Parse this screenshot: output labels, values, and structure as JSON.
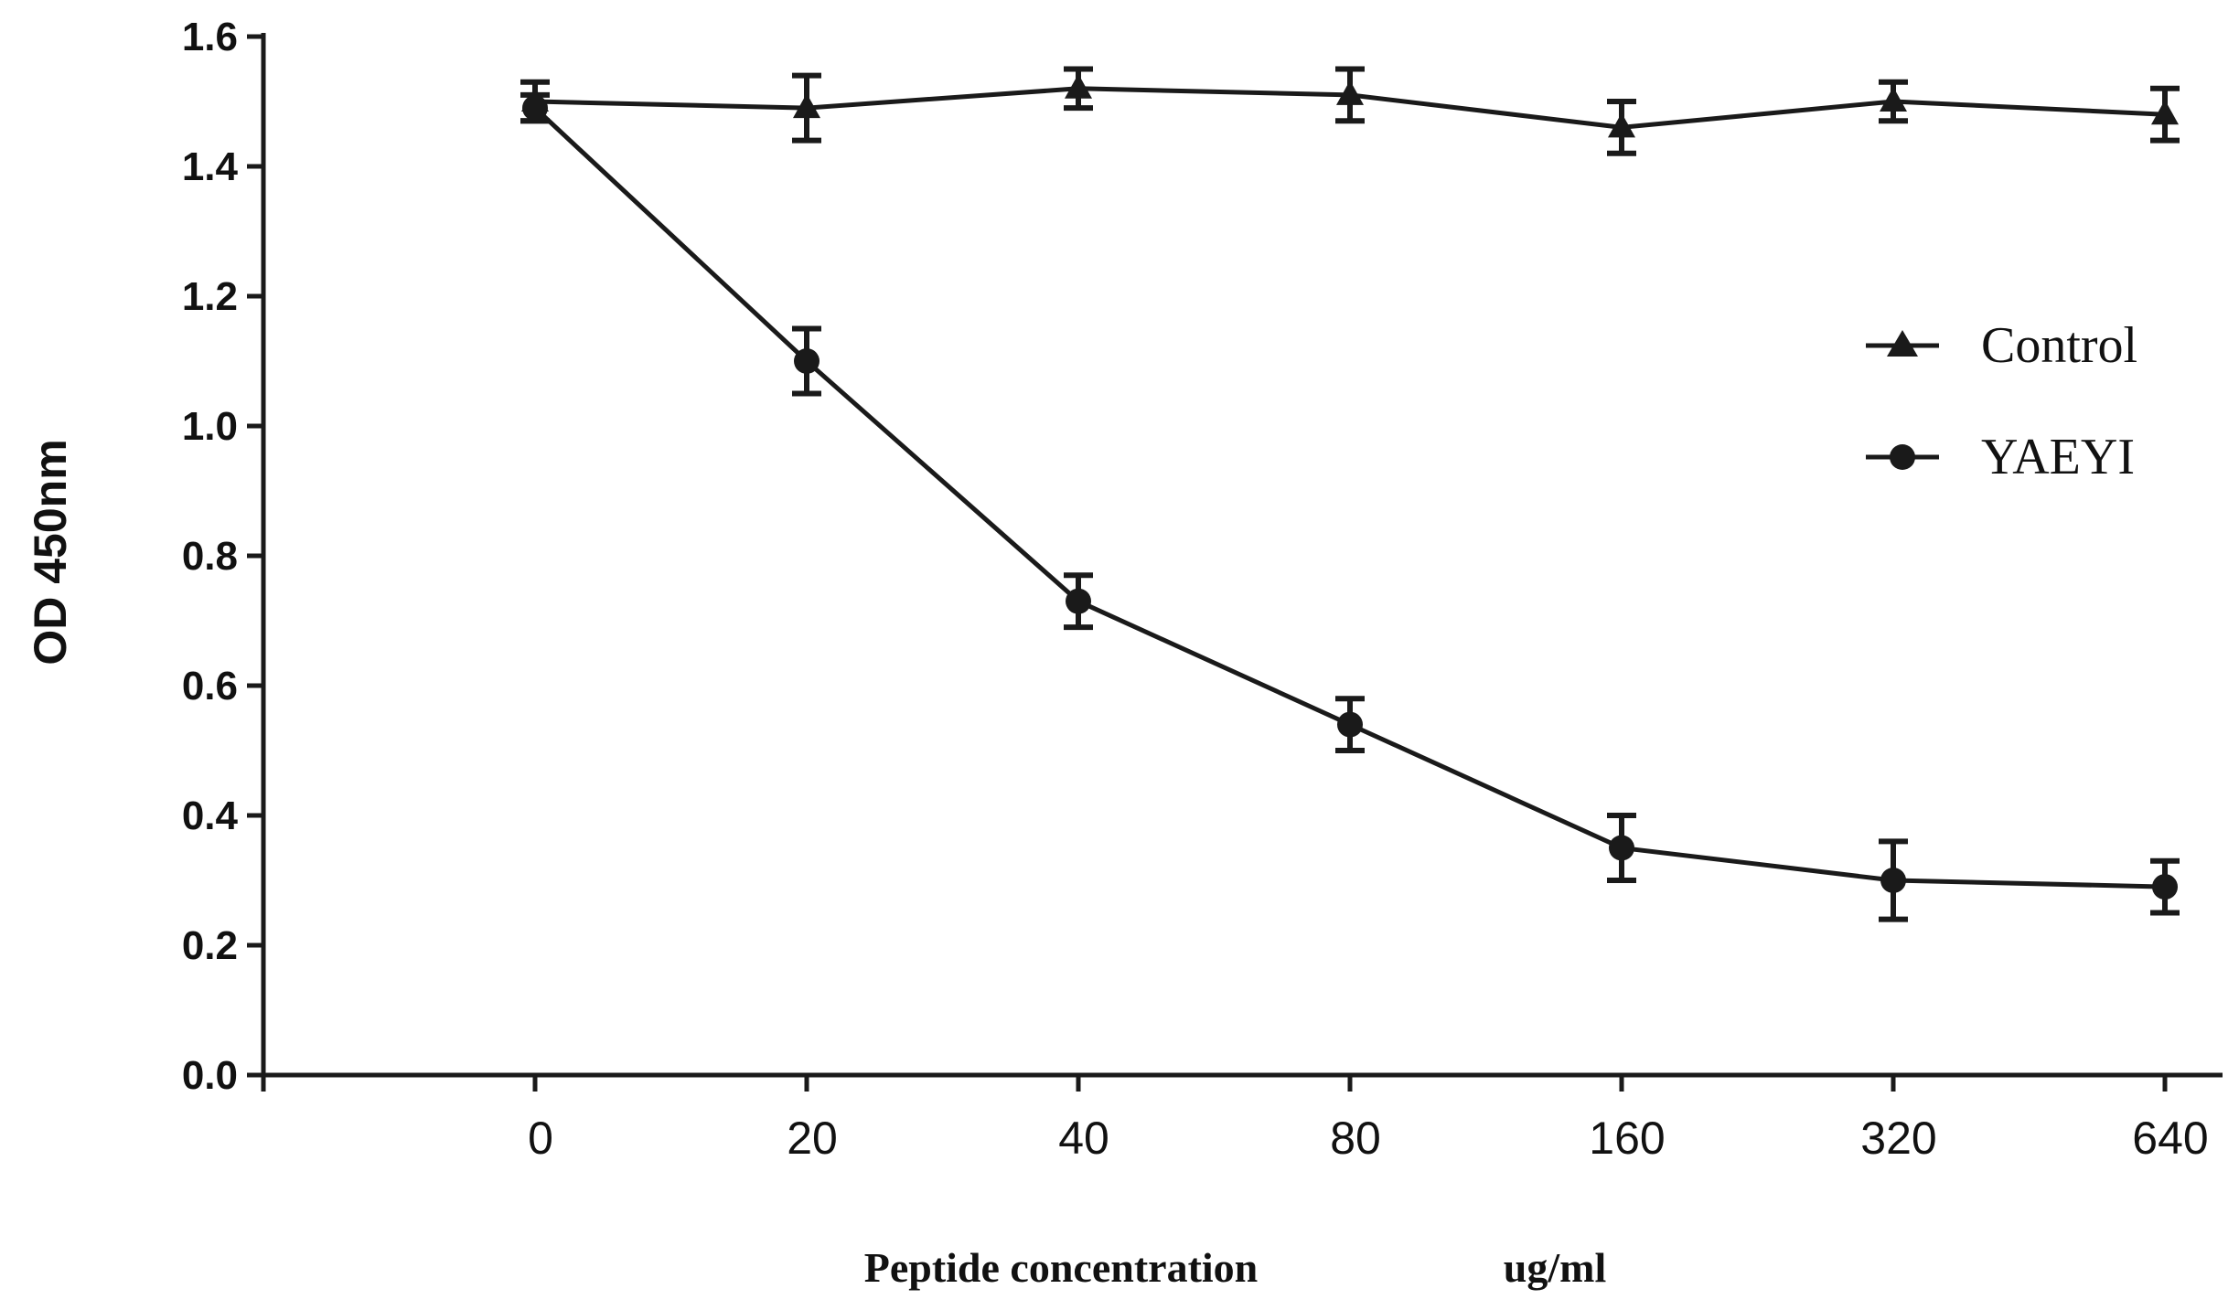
{
  "chart_data": {
    "type": "line",
    "title": "",
    "xlabel": "Peptide concentration",
    "xlabel_unit": "ug/ml",
    "ylabel": "OD 450nm",
    "categories": [
      "0",
      "20",
      "40",
      "80",
      "160",
      "320",
      "640"
    ],
    "ylim": [
      0,
      1.6
    ],
    "yticks": [
      "0.0",
      "0.2",
      "0.4",
      "0.6",
      "0.8",
      "1.0",
      "1.2",
      "1.4",
      "1.6"
    ],
    "grid": false,
    "legend_position": "right",
    "series": [
      {
        "name": "Control",
        "marker": "triangle",
        "values": [
          1.5,
          1.49,
          1.52,
          1.51,
          1.46,
          1.5,
          1.48
        ],
        "errors": [
          0.03,
          0.05,
          0.03,
          0.04,
          0.04,
          0.03,
          0.04
        ]
      },
      {
        "name": "YAEYI",
        "marker": "circle",
        "values": [
          1.49,
          1.1,
          0.73,
          0.54,
          0.35,
          0.3,
          0.29
        ],
        "errors": [
          0.02,
          0.05,
          0.04,
          0.04,
          0.05,
          0.06,
          0.04
        ]
      }
    ],
    "color": "#1a1a1a"
  }
}
